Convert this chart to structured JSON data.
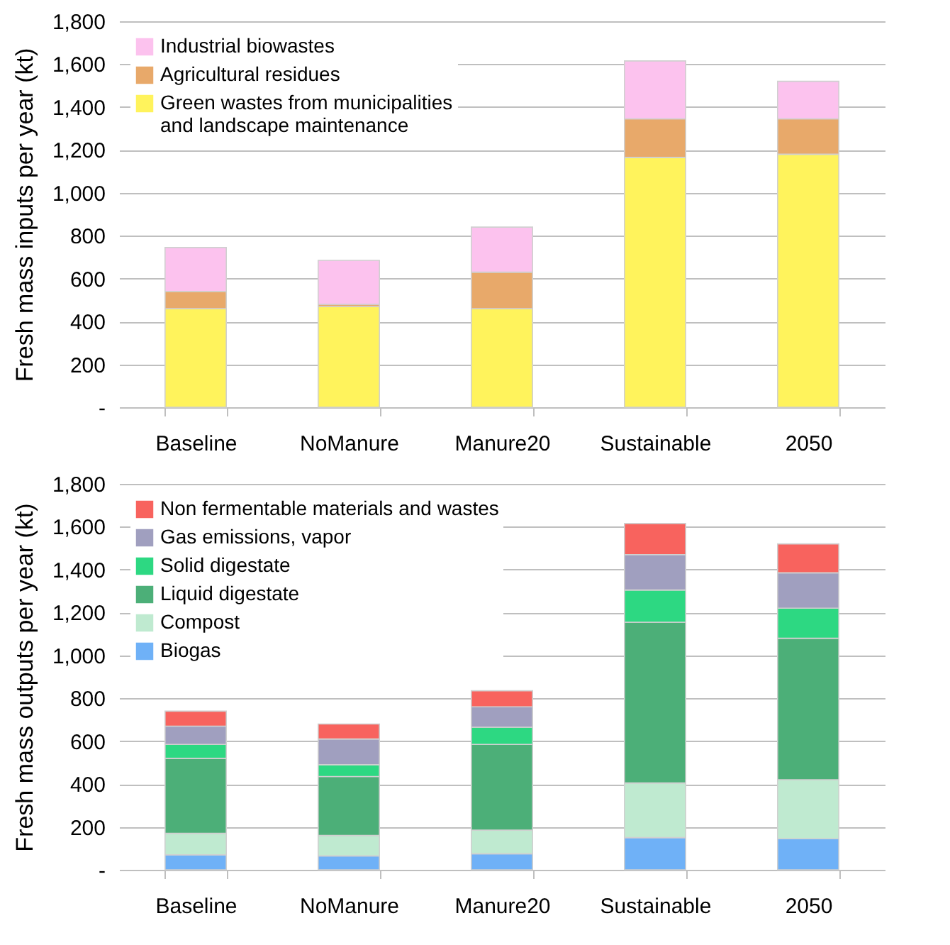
{
  "chart_data": [
    {
      "type": "bar",
      "stacked": true,
      "ylabel": "Fresh mass inputs per year  (kt)",
      "categories": [
        "Baseline",
        "NoManure",
        "Manure20",
        "Sustainable",
        "2050"
      ],
      "ylim": [
        0,
        1800
      ],
      "yticks": [
        {
          "value": 0,
          "label": "-"
        },
        200,
        400,
        600,
        800,
        {
          "value": 1000,
          "label": "1,000"
        },
        {
          "value": 1200,
          "label": "1,200"
        },
        {
          "value": 1400,
          "label": "1,400"
        },
        {
          "value": 1600,
          "label": "1,600"
        },
        {
          "value": 1800,
          "label": "1,800"
        }
      ],
      "grid": "y",
      "legend": "top left",
      "series": [
        {
          "name": "Green wastes from municipalities and landscape maintenance",
          "color": "#fff35c",
          "values": [
            460,
            470,
            460,
            1165,
            1180
          ]
        },
        {
          "name": "Agricultural residues",
          "color": "#e8a96a",
          "values": [
            80,
            10,
            170,
            180,
            165
          ]
        },
        {
          "name": "Industrial biowastes",
          "color": "#fcc2ee",
          "values": [
            205,
            205,
            210,
            270,
            175
          ]
        }
      ]
    },
    {
      "type": "bar",
      "stacked": true,
      "ylabel": "Fresh mass outputs per year  (kt)",
      "categories": [
        "Baseline",
        "NoManure",
        "Manure20",
        "Sustainable",
        "2050"
      ],
      "ylim": [
        0,
        1800
      ],
      "yticks": [
        {
          "value": 0,
          "label": "-"
        },
        200,
        400,
        600,
        800,
        {
          "value": 1000,
          "label": "1,000"
        },
        {
          "value": 1200,
          "label": "1,200"
        },
        {
          "value": 1400,
          "label": "1,400"
        },
        {
          "value": 1600,
          "label": "1,600"
        },
        {
          "value": 1800,
          "label": "1,800"
        }
      ],
      "grid": "y",
      "legend": "top left",
      "series": [
        {
          "name": "Biogas",
          "color": "#6fb1f7",
          "values": [
            70,
            65,
            75,
            150,
            145
          ]
        },
        {
          "name": "Compost",
          "color": "#bfead0",
          "values": [
            100,
            95,
            110,
            255,
            275
          ]
        },
        {
          "name": "Liquid digestate",
          "color": "#4caf78",
          "values": [
            350,
            275,
            400,
            750,
            660
          ]
        },
        {
          "name": "Solid digestate",
          "color": "#2dd882",
          "values": [
            65,
            55,
            80,
            150,
            140
          ]
        },
        {
          "name": "Gas emissions, vapor",
          "color": "#a09fbf",
          "values": [
            85,
            120,
            95,
            165,
            165
          ]
        },
        {
          "name": "Non fermentable materials and wastes",
          "color": "#f8635e",
          "values": [
            70,
            70,
            75,
            145,
            135
          ]
        }
      ]
    }
  ]
}
